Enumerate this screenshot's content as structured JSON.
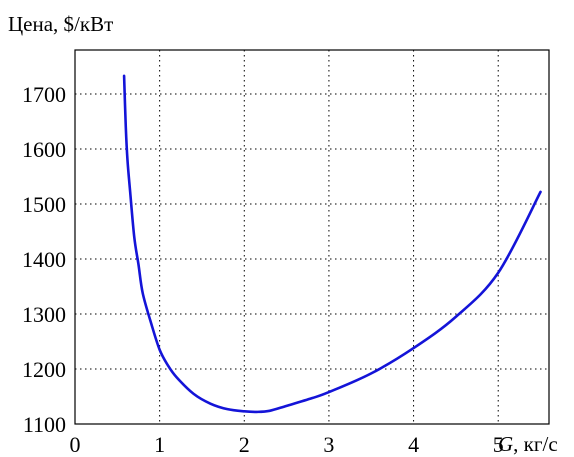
{
  "chart_data": {
    "type": "line",
    "ylabel": "Цена, $/кВт",
    "xlabel_var": "G",
    "xlabel_unit": ", кг/с",
    "xlim": [
      0,
      5.6
    ],
    "ylim": [
      1100,
      1780
    ],
    "x_ticks": [
      0,
      1,
      2,
      3,
      4,
      5
    ],
    "y_ticks": [
      1100,
      1200,
      1300,
      1400,
      1500,
      1600,
      1700
    ],
    "x_tick_labels": [
      "0",
      "1",
      "2",
      "3",
      "4",
      "5"
    ],
    "y_tick_labels": [
      "1100",
      "1200",
      "1300",
      "1400",
      "1500",
      "1600",
      "1700"
    ],
    "grid": true,
    "colors": {
      "line": "#1414d8",
      "grid": "#000000",
      "frame": "#000000"
    },
    "series": [
      {
        "x": [
          0.58,
          0.6,
          0.62,
          0.65,
          0.7,
          0.75,
          0.8,
          0.9,
          1.0,
          1.1,
          1.2,
          1.4,
          1.6,
          1.8,
          2.0,
          2.15,
          2.3,
          2.5,
          2.8,
          3.0,
          3.5,
          4.0,
          4.5,
          5.0,
          5.5
        ],
        "y": [
          1733,
          1640,
          1580,
          1525,
          1440,
          1390,
          1338,
          1283,
          1235,
          1206,
          1185,
          1155,
          1137,
          1127,
          1123,
          1122,
          1124,
          1133,
          1147,
          1158,
          1192,
          1238,
          1295,
          1375,
          1522
        ]
      }
    ]
  }
}
